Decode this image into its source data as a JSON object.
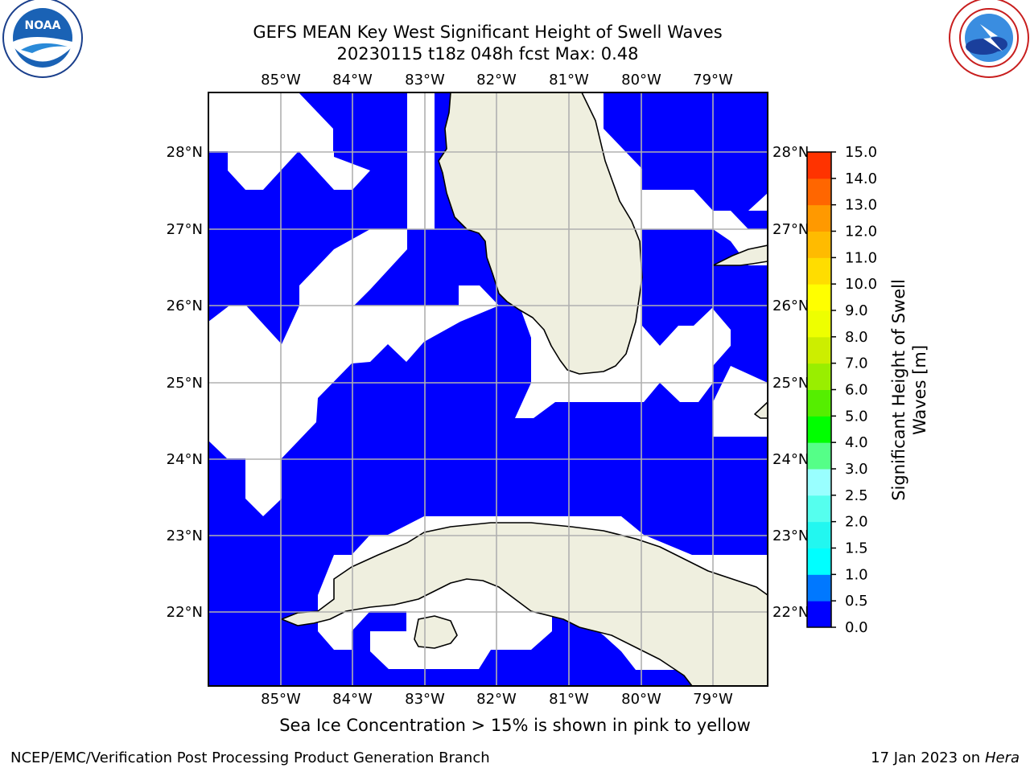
{
  "header": {
    "title_line1": "GEFS MEAN Key West Significant Height of Swell Waves",
    "title_line2": "20230115 t18z 048h fcst   Max: 0.48"
  },
  "logos": {
    "left": "NOAA",
    "left_ring_text": "NATIONAL OCEANIC AND ATMOSPHERIC ADMINISTRATION · U.S. DEPARTMENT OF COMMERCE",
    "right_ring_text": "NATIONAL WEATHER SERVICE"
  },
  "map": {
    "lon_labels": [
      "85°W",
      "84°W",
      "83°W",
      "82°W",
      "81°W",
      "80°W",
      "79°W"
    ],
    "lat_labels": [
      "28°N",
      "27°N",
      "26°N",
      "25°N",
      "24°N",
      "23°N",
      "22°N"
    ],
    "colors": {
      "swell_0_0_5": "#0000ff",
      "land": "#efefdf",
      "grid": "#b0b0b0"
    }
  },
  "colorbar": {
    "label": "Significant Height of Swell Waves [m]",
    "ticks": [
      "0.0",
      "0.5",
      "1.0",
      "1.5",
      "2.0",
      "2.5",
      "3.0",
      "4.0",
      "5.0",
      "6.0",
      "7.0",
      "8.0",
      "9.0",
      "10.0",
      "11.0",
      "12.0",
      "13.0",
      "14.0",
      "15.0"
    ],
    "colors": [
      "#0000ff",
      "#0078ff",
      "#00ffff",
      "#22f7f0",
      "#55ffee",
      "#99ffff",
      "#55ff88",
      "#00ff00",
      "#55ee00",
      "#99ee00",
      "#ccee00",
      "#eeff00",
      "#ffff00",
      "#ffdd00",
      "#ffbb00",
      "#ff9900",
      "#ff6600",
      "#ff3300",
      "#ff0000"
    ]
  },
  "footer": {
    "note": "Sea Ice Concentration > 15% is shown in pink to yellow",
    "credit": "NCEP/EMC/Verification Post Processing Product Generation Branch",
    "date": "17 Jan 2023 on",
    "host": "Hera"
  }
}
